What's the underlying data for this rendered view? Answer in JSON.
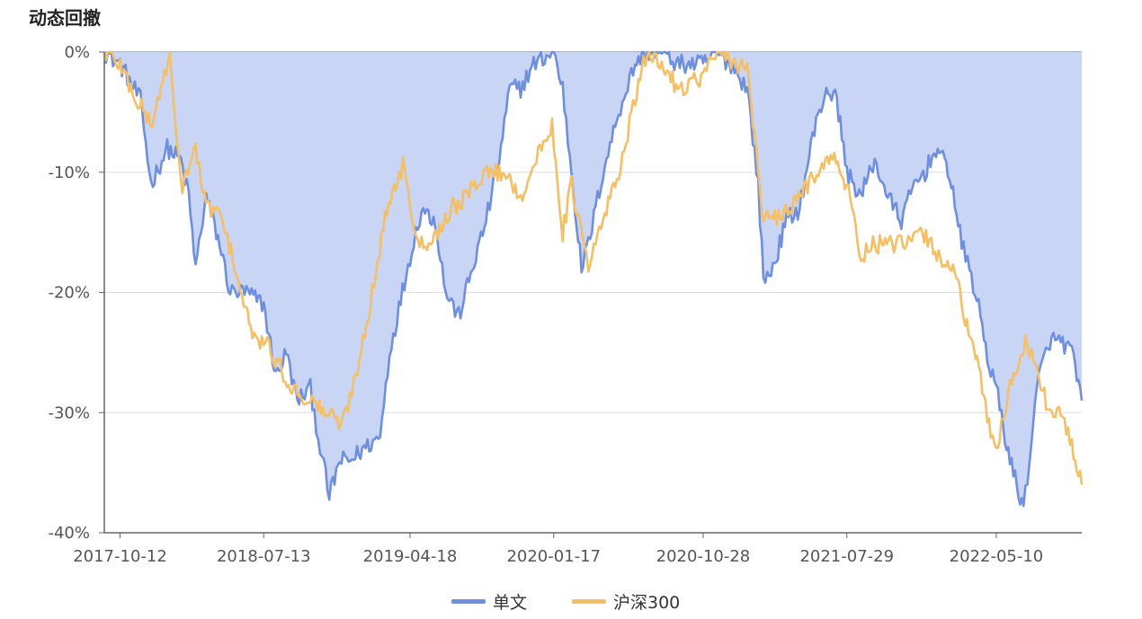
{
  "title": "动态回撤",
  "chart_data": {
    "type": "area",
    "title": "动态回撤",
    "xlabel": "",
    "ylabel": "",
    "ylim": [
      -40,
      0
    ],
    "y_ticks": [
      0,
      -10,
      -20,
      -30,
      -40
    ],
    "y_tick_labels": [
      "0%",
      "-10%",
      "-20%",
      "-30%",
      "-40%"
    ],
    "x_range": [
      "2017-09-12",
      "2022-10-20"
    ],
    "x_tick_labels": [
      "2017-10-12",
      "2018-07-13",
      "2019-04-18",
      "2020-01-17",
      "2020-10-28",
      "2021-07-29",
      "2022-05-10"
    ],
    "grid": true,
    "legend_position": "bottom-center",
    "series": [
      {
        "name": "单文",
        "color": "#6e8fe0",
        "fill": "#c9d5f5",
        "x": [
          "2017-09-12",
          "2017-10-12",
          "2017-11-20",
          "2017-12-10",
          "2018-01-10",
          "2018-02-05",
          "2018-02-20",
          "2018-03-05",
          "2018-03-25",
          "2018-04-20",
          "2018-05-10",
          "2018-06-10",
          "2018-07-13",
          "2018-08-05",
          "2018-08-25",
          "2018-09-15",
          "2018-10-10",
          "2018-10-25",
          "2018-11-15",
          "2018-12-05",
          "2018-12-25",
          "2019-01-20",
          "2019-02-20",
          "2019-03-10",
          "2019-04-18",
          "2019-05-10",
          "2019-06-05",
          "2019-06-25",
          "2019-07-20",
          "2019-08-15",
          "2019-09-10",
          "2019-10-05",
          "2019-10-25",
          "2019-11-15",
          "2019-12-10",
          "2020-01-17",
          "2020-02-03",
          "2020-02-20",
          "2020-03-10",
          "2020-03-23",
          "2020-04-20",
          "2020-05-20",
          "2020-06-20",
          "2020-07-10",
          "2020-08-10",
          "2020-09-10",
          "2020-10-28",
          "2020-11-20",
          "2020-12-20",
          "2021-01-20",
          "2021-02-10",
          "2021-02-20",
          "2021-03-10",
          "2021-04-05",
          "2021-04-30",
          "2021-05-25",
          "2021-06-20",
          "2021-07-10",
          "2021-07-29",
          "2021-08-25",
          "2021-09-20",
          "2021-10-15",
          "2021-11-10",
          "2021-12-05",
          "2021-12-25",
          "2022-01-15",
          "2022-02-10",
          "2022-03-05",
          "2022-03-20",
          "2022-04-10",
          "2022-04-26",
          "2022-05-10",
          "2022-06-05",
          "2022-07-01",
          "2022-07-30",
          "2022-08-20",
          "2022-09-10",
          "2022-10-01",
          "2022-10-20"
        ],
        "values": [
          0,
          -1,
          -4,
          -11,
          -8,
          -9,
          -12,
          -18,
          -12,
          -16,
          -20,
          -20,
          -21,
          -27,
          -25,
          -29,
          -28,
          -32,
          -37,
          -34,
          -34,
          -33,
          -32,
          -25,
          -17,
          -13,
          -14,
          -20,
          -22,
          -18,
          -14,
          -9,
          -3,
          -3,
          -1,
          0,
          -3,
          -10,
          -18,
          -16,
          -10,
          -5,
          -1,
          0,
          0,
          -1,
          -1,
          0,
          -1,
          -3,
          -11,
          -19,
          -18,
          -14,
          -13,
          -7,
          -3,
          -4,
          -10,
          -12,
          -9,
          -12,
          -14,
          -11,
          -10,
          -8,
          -10,
          -16,
          -18,
          -22,
          -26,
          -28,
          -34,
          -38,
          -27,
          -24,
          -24,
          -25,
          -29
        ]
      },
      {
        "name": "沪深300",
        "color": "#f5bf63",
        "x": [
          "2017-09-12",
          "2017-10-12",
          "2017-11-12",
          "2017-12-12",
          "2018-01-15",
          "2018-01-28",
          "2018-02-08",
          "2018-03-05",
          "2018-03-25",
          "2018-04-15",
          "2018-05-15",
          "2018-06-05",
          "2018-06-25",
          "2018-07-13",
          "2018-08-10",
          "2018-09-05",
          "2018-10-10",
          "2018-11-10",
          "2018-12-10",
          "2019-01-04",
          "2019-02-05",
          "2019-03-05",
          "2019-04-08",
          "2019-04-18",
          "2019-05-10",
          "2019-06-10",
          "2019-07-05",
          "2019-08-05",
          "2019-09-05",
          "2019-10-15",
          "2019-11-15",
          "2019-12-15",
          "2020-01-14",
          "2020-02-03",
          "2020-02-20",
          "2020-03-23",
          "2020-04-20",
          "2020-05-20",
          "2020-06-20",
          "2020-07-13",
          "2020-08-10",
          "2020-09-10",
          "2020-10-28",
          "2020-11-20",
          "2020-12-20",
          "2021-01-20",
          "2021-02-10",
          "2021-02-20",
          "2021-03-10",
          "2021-04-15",
          "2021-05-15",
          "2021-06-15",
          "2021-07-05",
          "2021-07-29",
          "2021-08-25",
          "2021-09-20",
          "2021-10-20",
          "2021-11-20",
          "2021-12-20",
          "2022-01-20",
          "2022-02-20",
          "2022-03-15",
          "2022-04-10",
          "2022-04-26",
          "2022-05-10",
          "2022-06-05",
          "2022-07-05",
          "2022-07-30",
          "2022-08-20",
          "2022-09-10",
          "2022-10-01",
          "2022-10-20"
        ],
        "values": [
          0,
          -1,
          -4,
          -6,
          0,
          -8,
          -11,
          -8,
          -13,
          -13,
          -17,
          -21,
          -24,
          -24,
          -26,
          -28,
          -29,
          -30,
          -31,
          -27,
          -20,
          -13,
          -9,
          -13,
          -16,
          -15,
          -13,
          -12,
          -10,
          -10,
          -12,
          -9,
          -6,
          -15,
          -11,
          -18,
          -14,
          -10,
          -4,
          0,
          -1,
          -3,
          -2,
          0,
          -1,
          -1,
          -10,
          -14,
          -14,
          -13,
          -11,
          -9,
          -9,
          -11,
          -17,
          -16,
          -16,
          -16,
          -15,
          -17,
          -18,
          -23,
          -27,
          -31,
          -33,
          -28,
          -24,
          -27,
          -30,
          -30,
          -33,
          -36
        ]
      }
    ]
  }
}
